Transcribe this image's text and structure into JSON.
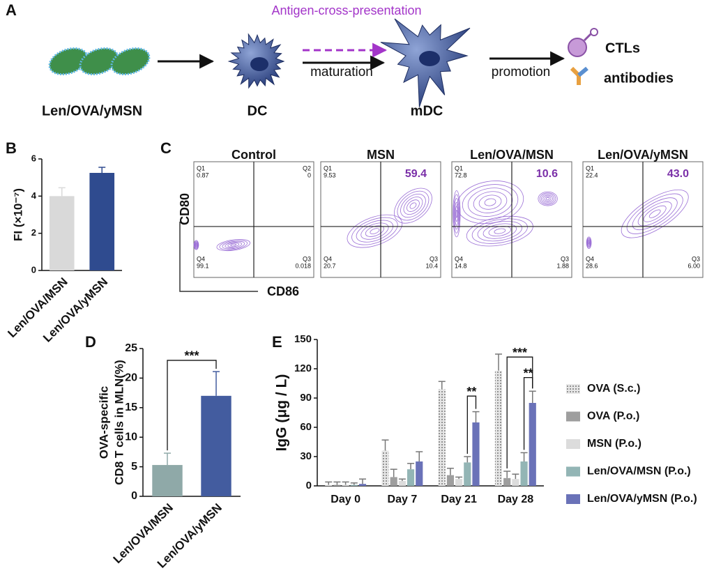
{
  "panel_labels": [
    "A",
    "B",
    "C",
    "D",
    "E"
  ],
  "diagram": {
    "top_label": "Antigen-cross-presentation",
    "particle": "Len/OVA/yMSN",
    "cell1": "DC",
    "arrow1": "maturation",
    "cell2": "mDC",
    "arrow2": "promotion",
    "outputs": [
      "CTLs",
      "antibodies"
    ]
  },
  "flow_cytometry": {
    "y_label": "CD80",
    "x_label": "CD86",
    "plots": [
      {
        "title": "Control",
        "q1": {
          "name": "Q1",
          "value": "0.87"
        },
        "q2": {
          "name": "Q2",
          "value": "0"
        },
        "q4": {
          "name": "Q4",
          "value": "99.1"
        },
        "q3": {
          "name": "Q3",
          "value": "0.018"
        }
      },
      {
        "title": "MSN",
        "q1": {
          "name": "Q1",
          "value": "9.53"
        },
        "q2": {
          "value": "59.4"
        },
        "q4": {
          "name": "Q4",
          "value": "20.7"
        },
        "q3": {
          "name": "Q3",
          "value": "10.4"
        }
      },
      {
        "title": "Len/OVA/MSN",
        "q1": {
          "name": "Q1",
          "value": "72.8"
        },
        "q2": {
          "value": "10.6"
        },
        "q4": {
          "name": "Q4",
          "value": "14.8"
        },
        "q3": {
          "name": "Q3",
          "value": "1.88"
        }
      },
      {
        "title": "Len/OVA/yMSN",
        "q1": {
          "name": "Q1",
          "value": "22.4"
        },
        "q2": {
          "value": "43.0"
        },
        "q4": {
          "name": "Q4",
          "value": "28.6"
        },
        "q3": {
          "name": "Q3",
          "value": "6.00"
        }
      }
    ]
  },
  "chart_data": [
    {
      "type": "bar",
      "ylabel": "FI (×10⁻⁷)",
      "categories": [
        "Len/OVA/MSN",
        "Len/OVA/yMSN"
      ],
      "values": [
        4.0,
        5.25
      ],
      "errors": [
        0.45,
        0.3
      ],
      "colors": [
        "#d9d9d9",
        "#2f4b8f"
      ],
      "ylim": [
        0,
        6
      ],
      "yticks": [
        0,
        2,
        4,
        6
      ]
    },
    {
      "type": "bar",
      "ylabel": [
        "OVA-specific",
        "CD8 T cells in MLN(%)"
      ],
      "categories": [
        "Len/OVA/MSN",
        "Len/OVA/yMSN"
      ],
      "values": [
        5.3,
        17.0
      ],
      "errors": [
        2.0,
        4.1
      ],
      "colors": [
        "#8fa9a8",
        "#435c9f"
      ],
      "ylim": [
        0,
        25
      ],
      "yticks": [
        0,
        5,
        10,
        15,
        20,
        25
      ],
      "annotations": [
        {
          "text": "***"
        }
      ]
    },
    {
      "type": "bar",
      "ylabel": "IgG (μg / L)",
      "categories": [
        "Day 0",
        "Day 7",
        "Day 21",
        "Day 28"
      ],
      "series": [
        {
          "name": "OVA (S.c.)",
          "color": "#cfcfcf",
          "hatch": "dots",
          "values": [
            1,
            36,
            99,
            118
          ],
          "errors": [
            3,
            11,
            8,
            17
          ]
        },
        {
          "name": "OVA (P.o.)",
          "color": "#9e9e9e",
          "values": [
            1,
            9,
            11,
            8
          ],
          "errors": [
            3,
            8,
            7,
            7
          ]
        },
        {
          "name": "MSN (P.o.)",
          "color": "#dcdcdc",
          "values": [
            1,
            5,
            7,
            7
          ],
          "errors": [
            3,
            2,
            2,
            5
          ]
        },
        {
          "name": "Len/OVA/MSN (P.o.)",
          "color": "#93b5b5",
          "values": [
            1,
            17,
            24,
            25
          ],
          "errors": [
            2,
            6,
            6,
            9
          ]
        },
        {
          "name": "Len/OVA/yMSN (P.o.)",
          "color": "#6a72b8",
          "values": [
            2,
            25,
            65,
            85
          ],
          "errors": [
            5,
            10,
            11,
            12
          ]
        }
      ],
      "ylim": [
        0,
        150
      ],
      "yticks": [
        0,
        30,
        60,
        90,
        120,
        150
      ],
      "annotations": [
        {
          "text": "**"
        },
        {
          "text": "***"
        },
        {
          "text": "**"
        }
      ]
    }
  ]
}
